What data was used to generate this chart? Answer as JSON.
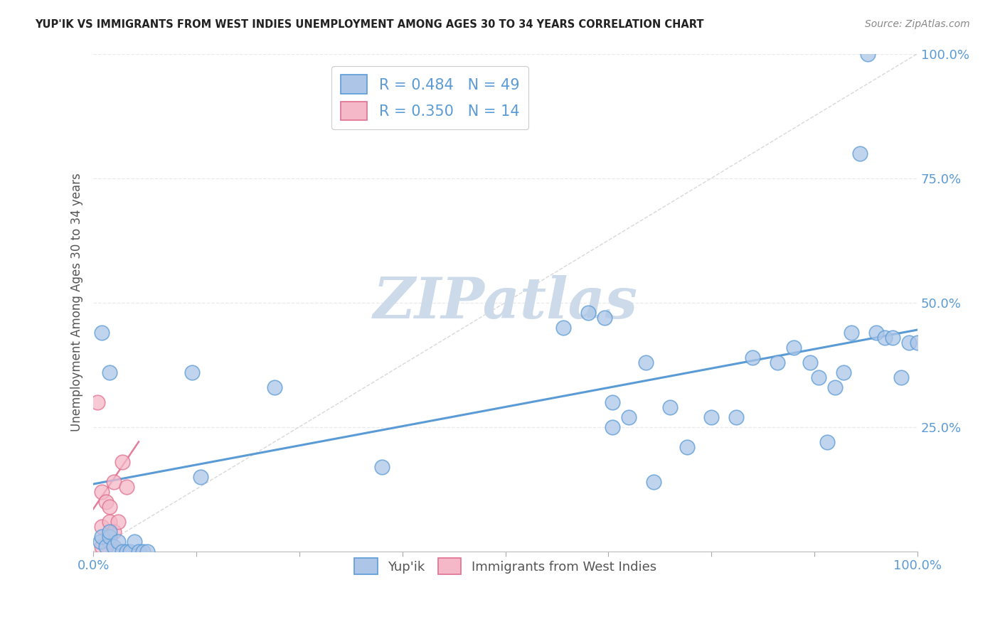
{
  "title": "YUP'IK VS IMMIGRANTS FROM WEST INDIES UNEMPLOYMENT AMONG AGES 30 TO 34 YEARS CORRELATION CHART",
  "source": "Source: ZipAtlas.com",
  "ylabel": "Unemployment Among Ages 30 to 34 years",
  "xlim": [
    0,
    1.0
  ],
  "ylim": [
    0,
    1.0
  ],
  "xtick_vals": [
    0.0,
    0.125,
    0.25,
    0.375,
    0.5,
    0.625,
    0.75,
    0.875,
    1.0
  ],
  "ytick_vals": [
    0.0,
    0.25,
    0.5,
    0.75,
    1.0
  ],
  "legend_entries": [
    {
      "label": "Yup'ik",
      "R": "0.484",
      "N": "49"
    },
    {
      "label": "Immigrants from West Indies",
      "R": "0.350",
      "N": "14"
    }
  ],
  "blue_scatter_x": [
    0.008,
    0.01,
    0.015,
    0.02,
    0.02,
    0.025,
    0.03,
    0.035,
    0.04,
    0.045,
    0.05,
    0.055,
    0.06,
    0.065,
    0.01,
    0.02,
    0.12,
    0.13,
    0.22,
    0.35,
    0.57,
    0.6,
    0.62,
    0.63,
    0.65,
    0.67,
    0.7,
    0.72,
    0.75,
    0.78,
    0.8,
    0.83,
    0.85,
    0.87,
    0.88,
    0.89,
    0.9,
    0.91,
    0.92,
    0.93,
    0.94,
    0.95,
    0.96,
    0.97,
    0.98,
    0.99,
    1.0,
    0.63,
    0.68
  ],
  "blue_scatter_y": [
    0.02,
    0.03,
    0.01,
    0.03,
    0.04,
    0.01,
    0.02,
    0.0,
    0.0,
    0.0,
    0.02,
    0.0,
    0.0,
    0.0,
    0.44,
    0.36,
    0.36,
    0.15,
    0.33,
    0.17,
    0.45,
    0.48,
    0.47,
    0.3,
    0.27,
    0.38,
    0.29,
    0.21,
    0.27,
    0.27,
    0.39,
    0.38,
    0.41,
    0.38,
    0.35,
    0.22,
    0.33,
    0.36,
    0.44,
    0.8,
    1.0,
    0.44,
    0.43,
    0.43,
    0.35,
    0.42,
    0.42,
    0.25,
    0.14
  ],
  "pink_scatter_x": [
    0.005,
    0.01,
    0.01,
    0.01,
    0.015,
    0.02,
    0.02,
    0.02,
    0.025,
    0.025,
    0.03,
    0.03,
    0.035,
    0.04
  ],
  "pink_scatter_y": [
    0.3,
    0.01,
    0.05,
    0.12,
    0.1,
    0.02,
    0.06,
    0.09,
    0.04,
    0.14,
    0.0,
    0.06,
    0.18,
    0.13
  ],
  "blue_line_x": [
    0.0,
    1.0
  ],
  "blue_line_y": [
    0.135,
    0.445
  ],
  "pink_line_x": [
    0.0,
    0.055
  ],
  "pink_line_y": [
    0.085,
    0.22
  ],
  "diag_line_x": [
    0.0,
    1.0
  ],
  "diag_line_y": [
    0.0,
    1.0
  ],
  "blue_color": "#5b9bd5",
  "blue_scatter_color": "#adc6e8",
  "pink_color": "#e07090",
  "pink_scatter_color": "#f4b8c8",
  "diag_color": "#c8c8c8",
  "background_color": "#ffffff",
  "grid_color": "#e8e8e8",
  "title_color": "#222222",
  "axis_tick_color": "#5b9bd5",
  "legend_r_color": "#5b9bd5",
  "watermark": "ZIPatlas",
  "watermark_color": "#ccdaea"
}
